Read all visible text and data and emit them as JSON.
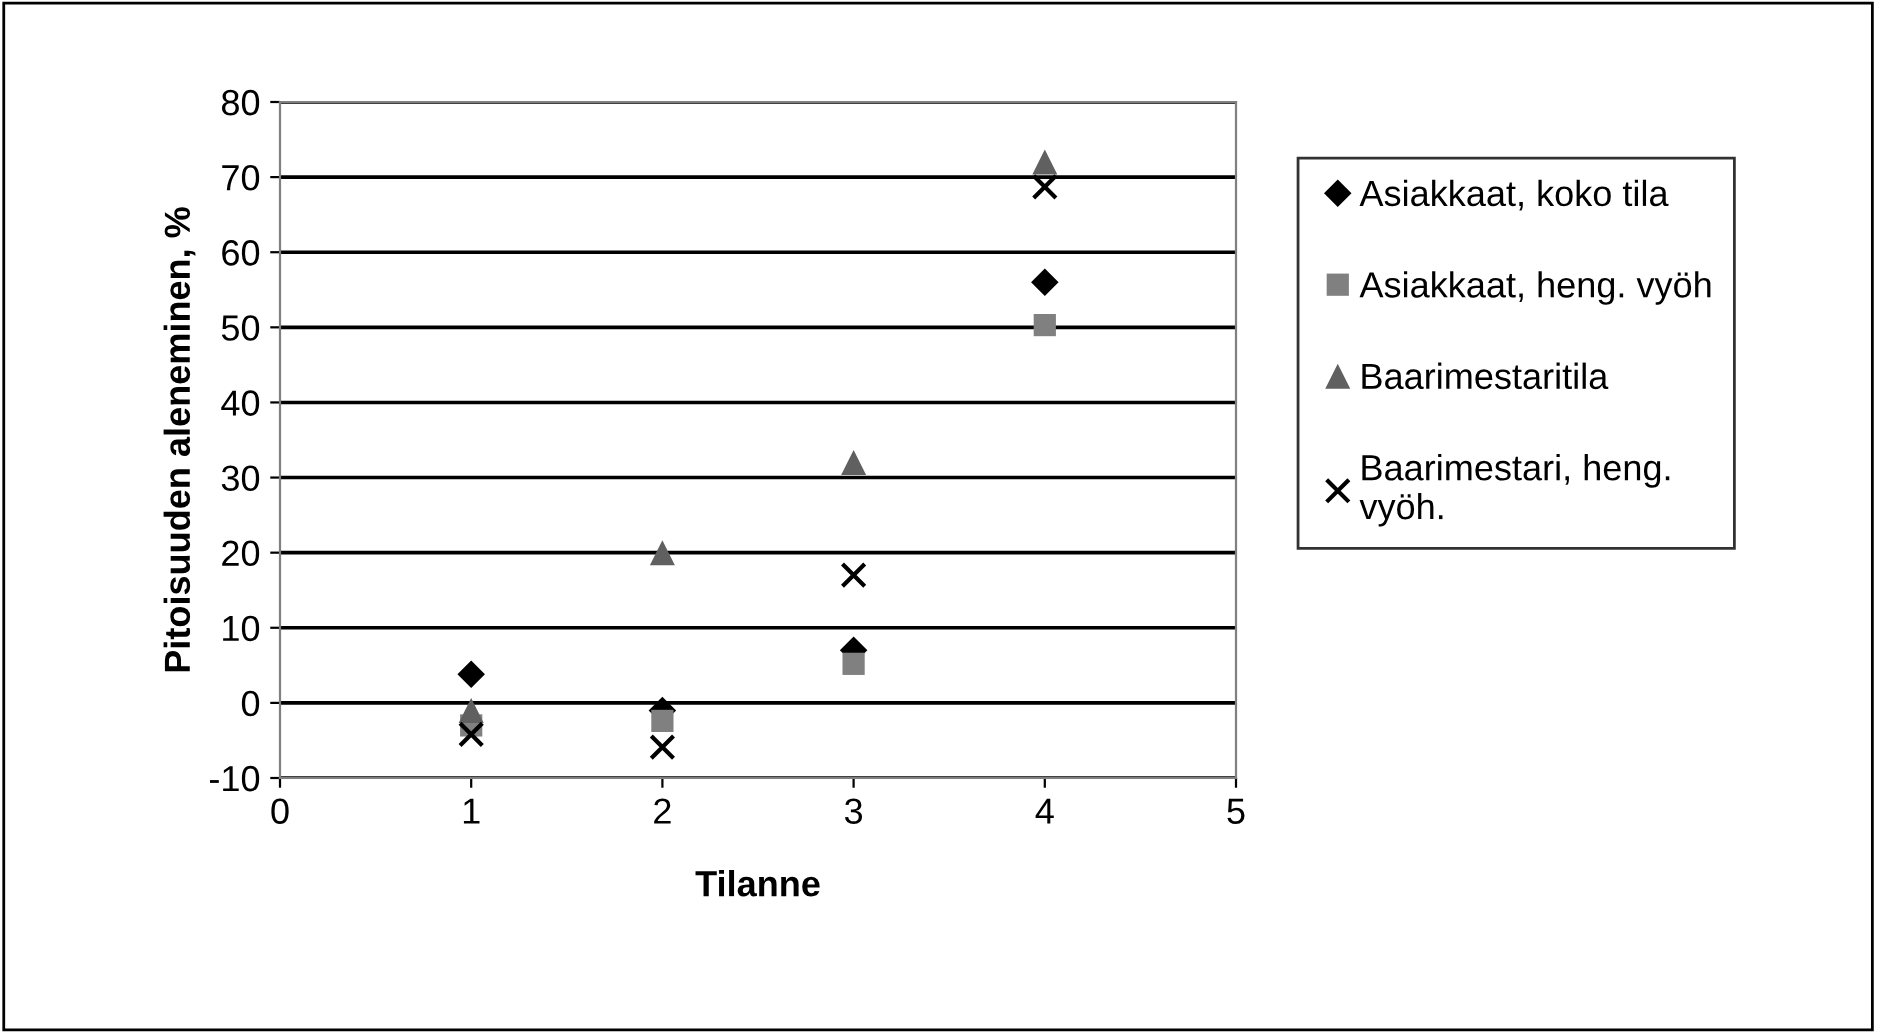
{
  "chart_data": {
    "type": "scatter",
    "xlabel": "Tilanne",
    "ylabel": "Pitoisuuden aleneminen, %",
    "x": [
      1,
      2,
      3,
      4
    ],
    "series": [
      {
        "name": "Asiakkaat, koko tila",
        "color": "#000000",
        "marker": "diamond",
        "values": [
          3.8,
          -1,
          7,
          56
        ]
      },
      {
        "name": "Asiakkaat, heng. vyöh",
        "color": "#808080",
        "marker": "square",
        "values": [
          -3,
          -2.4,
          5.2,
          50.3
        ]
      },
      {
        "name": "Baarimestaritila",
        "color": "#606060",
        "marker": "triangle",
        "values": [
          -1,
          20,
          32,
          72
        ]
      },
      {
        "name": "Baarimestari, heng.\nvyöh.",
        "color": "#000000",
        "marker": "cross",
        "values": [
          -4.2,
          -5.9,
          17,
          68.7
        ]
      }
    ],
    "xlim": [
      0,
      5
    ],
    "xticks": [
      0,
      1,
      2,
      3,
      4,
      5
    ],
    "ylim": [
      -10,
      80
    ],
    "yticks": [
      -10,
      0,
      10,
      20,
      30,
      40,
      50,
      60,
      70,
      80
    ],
    "grid": "y",
    "legend": "right"
  }
}
